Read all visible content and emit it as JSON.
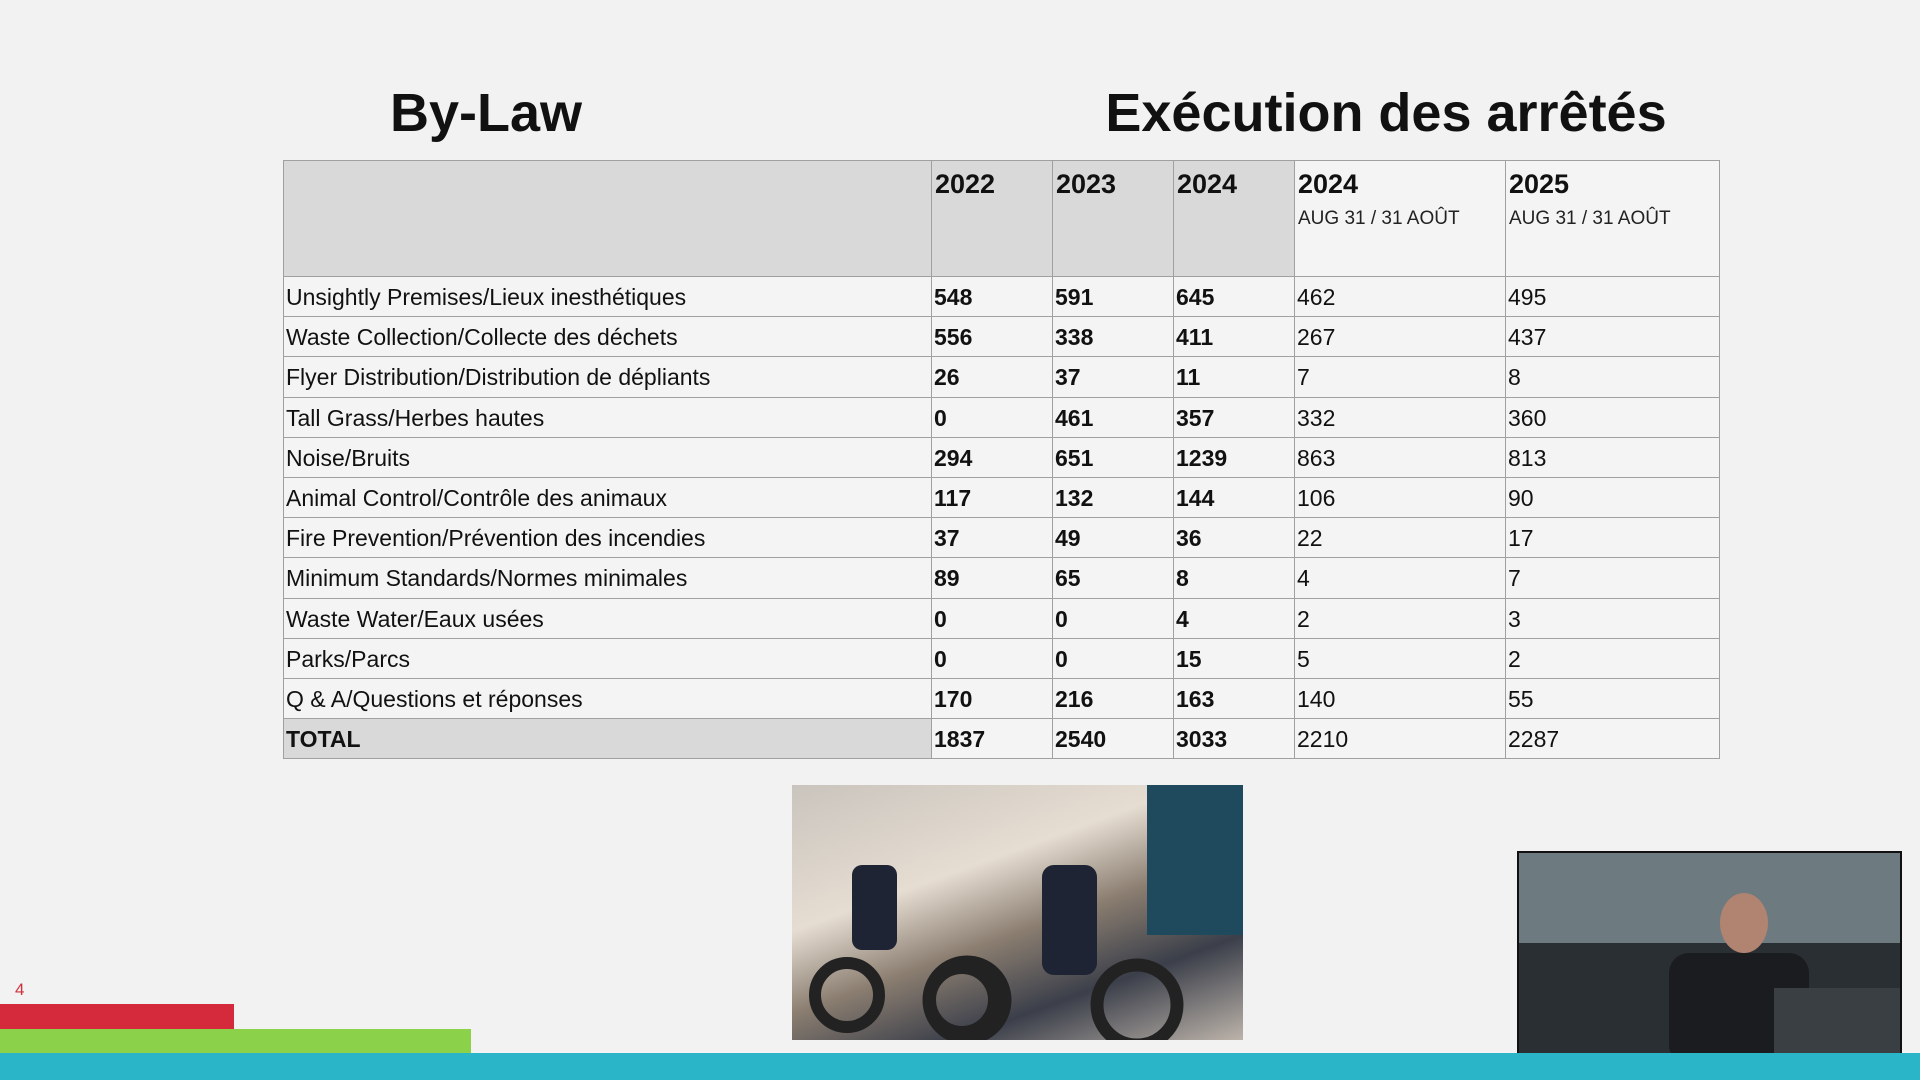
{
  "slide": {
    "title_left": "By-Law",
    "title_right": "Exécution des arrêtés",
    "slide_number": 4,
    "table": {
      "columns": [
        {
          "year": "2022"
        },
        {
          "year": "2023"
        },
        {
          "year": "2024"
        },
        {
          "year": "2024",
          "period": "AUG 31 /  31 AOÛT"
        },
        {
          "year": "2025",
          "period": "AUG 31 / 31 AOÛT"
        }
      ],
      "rows": [
        {
          "label": "Unsightly Premises/Lieux inesthétiques",
          "values": [
            548,
            591,
            645,
            462,
            495
          ]
        },
        {
          "label": "Waste Collection/Collecte des déchets",
          "values": [
            556,
            338,
            411,
            267,
            437
          ]
        },
        {
          "label": "Flyer Distribution/Distribution de dépliants",
          "values": [
            26,
            37,
            11,
            7,
            8
          ]
        },
        {
          "label": "Tall Grass/Herbes hautes",
          "values": [
            0,
            461,
            357,
            332,
            360
          ]
        },
        {
          "label": "Noise/Bruits",
          "values": [
            294,
            651,
            1239,
            863,
            813
          ]
        },
        {
          "label": "Animal Control/Contrôle des animaux",
          "values": [
            117,
            132,
            144,
            106,
            90
          ]
        },
        {
          "label": "Fire Prevention/Prévention des incendies",
          "values": [
            37,
            49,
            36,
            22,
            17
          ]
        },
        {
          "label": "Minimum Standards/Normes minimales",
          "values": [
            89,
            65,
            8,
            4,
            7
          ]
        },
        {
          "label": "Waste Water/Eaux usées",
          "values": [
            0,
            0,
            4,
            2,
            3
          ]
        },
        {
          "label": "Parks/Parcs",
          "values": [
            0,
            0,
            15,
            5,
            2
          ]
        },
        {
          "label": "Q & A/Questions et réponses",
          "values": [
            170,
            216,
            163,
            140,
            55
          ]
        },
        {
          "label": "TOTAL",
          "values": [
            1837,
            2540,
            3033,
            2210,
            2287
          ]
        }
      ]
    }
  }
}
